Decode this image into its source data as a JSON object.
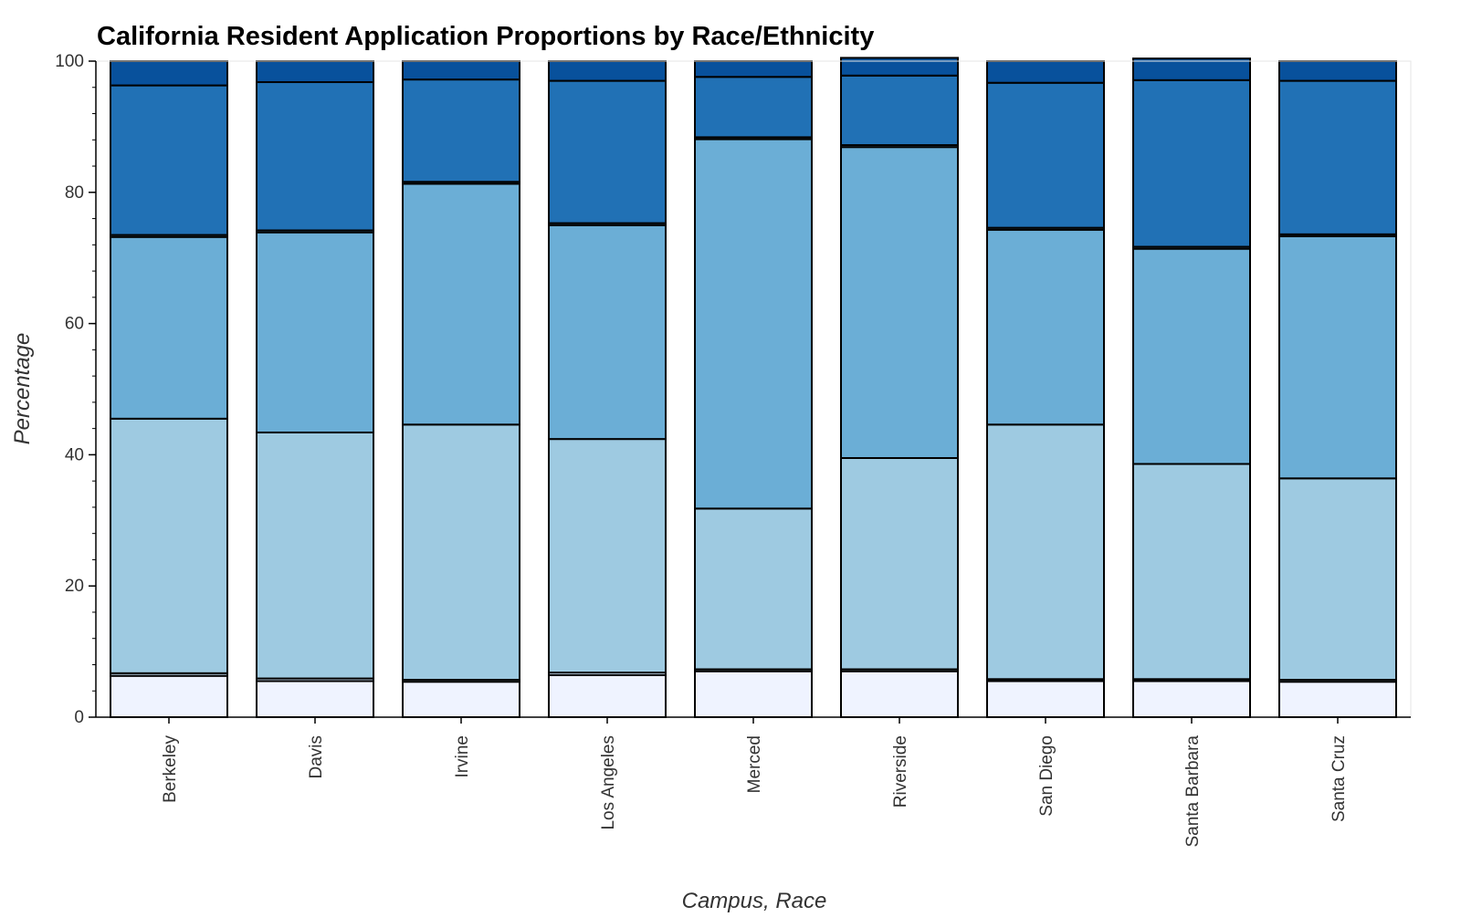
{
  "chart_data": {
    "type": "bar",
    "stacked": true,
    "title": "California Resident Application Proportions by Race/Ethnicity",
    "xlabel": "Campus, Race",
    "ylabel": "Percentage",
    "ylim": [
      0,
      100
    ],
    "yticks": [
      0,
      20,
      40,
      60,
      80,
      100
    ],
    "grid": false,
    "categories": [
      "Berkeley",
      "Davis",
      "Irvine",
      "Los Angeles",
      "Merced",
      "Riverside",
      "San Diego",
      "Santa Barbara",
      "Santa Cruz"
    ],
    "series": [
      {
        "color": "#eff3ff",
        "values": [
          6.3,
          5.5,
          5.4,
          6.4,
          7.0,
          7.0,
          5.5,
          5.5,
          5.4
        ]
      },
      {
        "color": "#c6dbef",
        "values": [
          0.4,
          0.4,
          0.3,
          0.4,
          0.3,
          0.3,
          0.3,
          0.3,
          0.3
        ]
      },
      {
        "color": "#9ecae1",
        "values": [
          38.8,
          37.5,
          38.9,
          35.6,
          24.5,
          32.2,
          38.8,
          32.8,
          30.7
        ]
      },
      {
        "color": "#6baed6",
        "values": [
          27.7,
          30.5,
          36.7,
          32.6,
          56.3,
          47.4,
          29.7,
          32.8,
          36.9
        ]
      },
      {
        "color": "#6baed6",
        "values": [
          0.3,
          0.3,
          0.3,
          0.3,
          0.3,
          0.3,
          0.3,
          0.3,
          0.3
        ]
      },
      {
        "color": "#2171b5",
        "values": [
          22.8,
          22.6,
          15.6,
          21.7,
          9.2,
          10.6,
          22.1,
          25.4,
          23.4
        ]
      },
      {
        "color": "#08519c",
        "values": [
          3.7,
          3.2,
          2.8,
          3.0,
          2.4,
          2.7,
          3.3,
          3.3,
          3.0
        ]
      }
    ]
  }
}
